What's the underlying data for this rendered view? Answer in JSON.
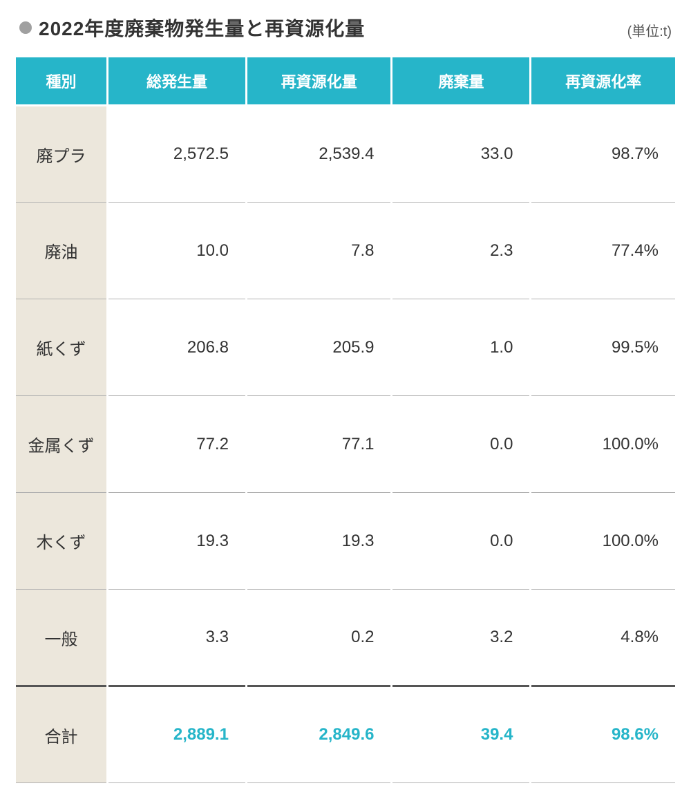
{
  "title": "2022年度廃棄物発生量と再資源化量",
  "unit_label": "(単位:t)",
  "table": {
    "type": "table",
    "header_bg": "#26b5c9",
    "header_fg": "#ffffff",
    "label_bg": "#ece7dc",
    "border_color": "#b0b0b0",
    "total_border_color": "#555555",
    "total_value_color": "#26b5c9",
    "body_fontsize": 24,
    "header_fontsize": 22,
    "columns": [
      "種別",
      "総発生量",
      "再資源化量",
      "廃棄量",
      "再資源化率"
    ],
    "rows": [
      {
        "label": "廃プラ",
        "total": "2,572.5",
        "recycled": "2,539.4",
        "waste": "33.0",
        "rate": "98.7%"
      },
      {
        "label": "廃油",
        "total": "10.0",
        "recycled": "7.8",
        "waste": "2.3",
        "rate": "77.4%"
      },
      {
        "label": "紙くず",
        "total": "206.8",
        "recycled": "205.9",
        "waste": "1.0",
        "rate": "99.5%"
      },
      {
        "label": "金属くず",
        "total": "77.2",
        "recycled": "77.1",
        "waste": "0.0",
        "rate": "100.0%"
      },
      {
        "label": "木くず",
        "total": "19.3",
        "recycled": "19.3",
        "waste": "0.0",
        "rate": "100.0%"
      },
      {
        "label": "一般",
        "total": "3.3",
        "recycled": "0.2",
        "waste": "3.2",
        "rate": "4.8%"
      }
    ],
    "total_row": {
      "label": "合計",
      "total": "2,889.1",
      "recycled": "2,849.6",
      "waste": "39.4",
      "rate": "98.6%"
    }
  }
}
